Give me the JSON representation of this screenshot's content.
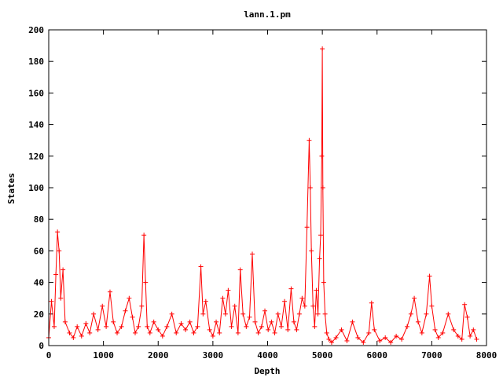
{
  "chart_data": {
    "type": "line",
    "title": "lann.1.pm",
    "xlabel": "Depth",
    "ylabel": "States",
    "xlim": [
      0,
      8000
    ],
    "ylim": [
      0,
      200
    ],
    "xticks": [
      0,
      1000,
      2000,
      3000,
      4000,
      5000,
      6000,
      7000,
      8000
    ],
    "yticks": [
      0,
      20,
      40,
      60,
      80,
      100,
      120,
      140,
      160,
      180,
      200
    ],
    "marker": "plus",
    "grid": false,
    "legend": "none",
    "color": "#ff0000",
    "series": [
      {
        "x": [
          0,
          50,
          100,
          130,
          160,
          190,
          220,
          260,
          300,
          380,
          450,
          520,
          600,
          680,
          750,
          820,
          900,
          980,
          1050,
          1120,
          1180,
          1250,
          1330,
          1400,
          1470,
          1530,
          1580,
          1640,
          1700,
          1740,
          1770,
          1800,
          1850,
          1920,
          2000,
          2080,
          2160,
          2250,
          2330,
          2420,
          2500,
          2580,
          2650,
          2720,
          2780,
          2820,
          2870,
          2940,
          3000,
          3060,
          3120,
          3180,
          3230,
          3280,
          3340,
          3400,
          3460,
          3500,
          3550,
          3610,
          3670,
          3720,
          3770,
          3830,
          3890,
          3950,
          4010,
          4070,
          4130,
          4190,
          4250,
          4310,
          4370,
          4430,
          4480,
          4530,
          4580,
          4630,
          4680,
          4720,
          4760,
          4780,
          4800,
          4830,
          4860,
          4890,
          4920,
          4950,
          4970,
          4990,
          5000,
          5010,
          5025,
          5050,
          5080,
          5120,
          5170,
          5250,
          5350,
          5450,
          5550,
          5650,
          5750,
          5850,
          5900,
          5950,
          6050,
          6150,
          6250,
          6350,
          6450,
          6550,
          6620,
          6680,
          6750,
          6820,
          6900,
          6960,
          7000,
          7060,
          7120,
          7200,
          7300,
          7400,
          7480,
          7550,
          7600,
          7650,
          7700,
          7760,
          7820
        ],
        "y": [
          5,
          28,
          12,
          45,
          72,
          60,
          30,
          48,
          15,
          8,
          5,
          12,
          6,
          14,
          8,
          20,
          10,
          25,
          12,
          34,
          15,
          8,
          12,
          22,
          30,
          18,
          8,
          12,
          25,
          70,
          40,
          12,
          8,
          15,
          10,
          6,
          12,
          20,
          8,
          14,
          10,
          15,
          8,
          12,
          50,
          20,
          28,
          10,
          6,
          15,
          8,
          30,
          20,
          35,
          12,
          25,
          8,
          48,
          20,
          12,
          18,
          58,
          15,
          8,
          12,
          22,
          10,
          15,
          8,
          20,
          12,
          28,
          10,
          36,
          15,
          10,
          20,
          30,
          25,
          75,
          130,
          100,
          60,
          25,
          12,
          35,
          20,
          55,
          70,
          120,
          188,
          100,
          40,
          20,
          8,
          4,
          2,
          5,
          10,
          3,
          15,
          5,
          2,
          8,
          27,
          10,
          3,
          5,
          2,
          6,
          4,
          12,
          20,
          30,
          15,
          8,
          20,
          44,
          25,
          10,
          5,
          8,
          20,
          10,
          6,
          4,
          26,
          18,
          6,
          10,
          4
        ]
      }
    ]
  }
}
